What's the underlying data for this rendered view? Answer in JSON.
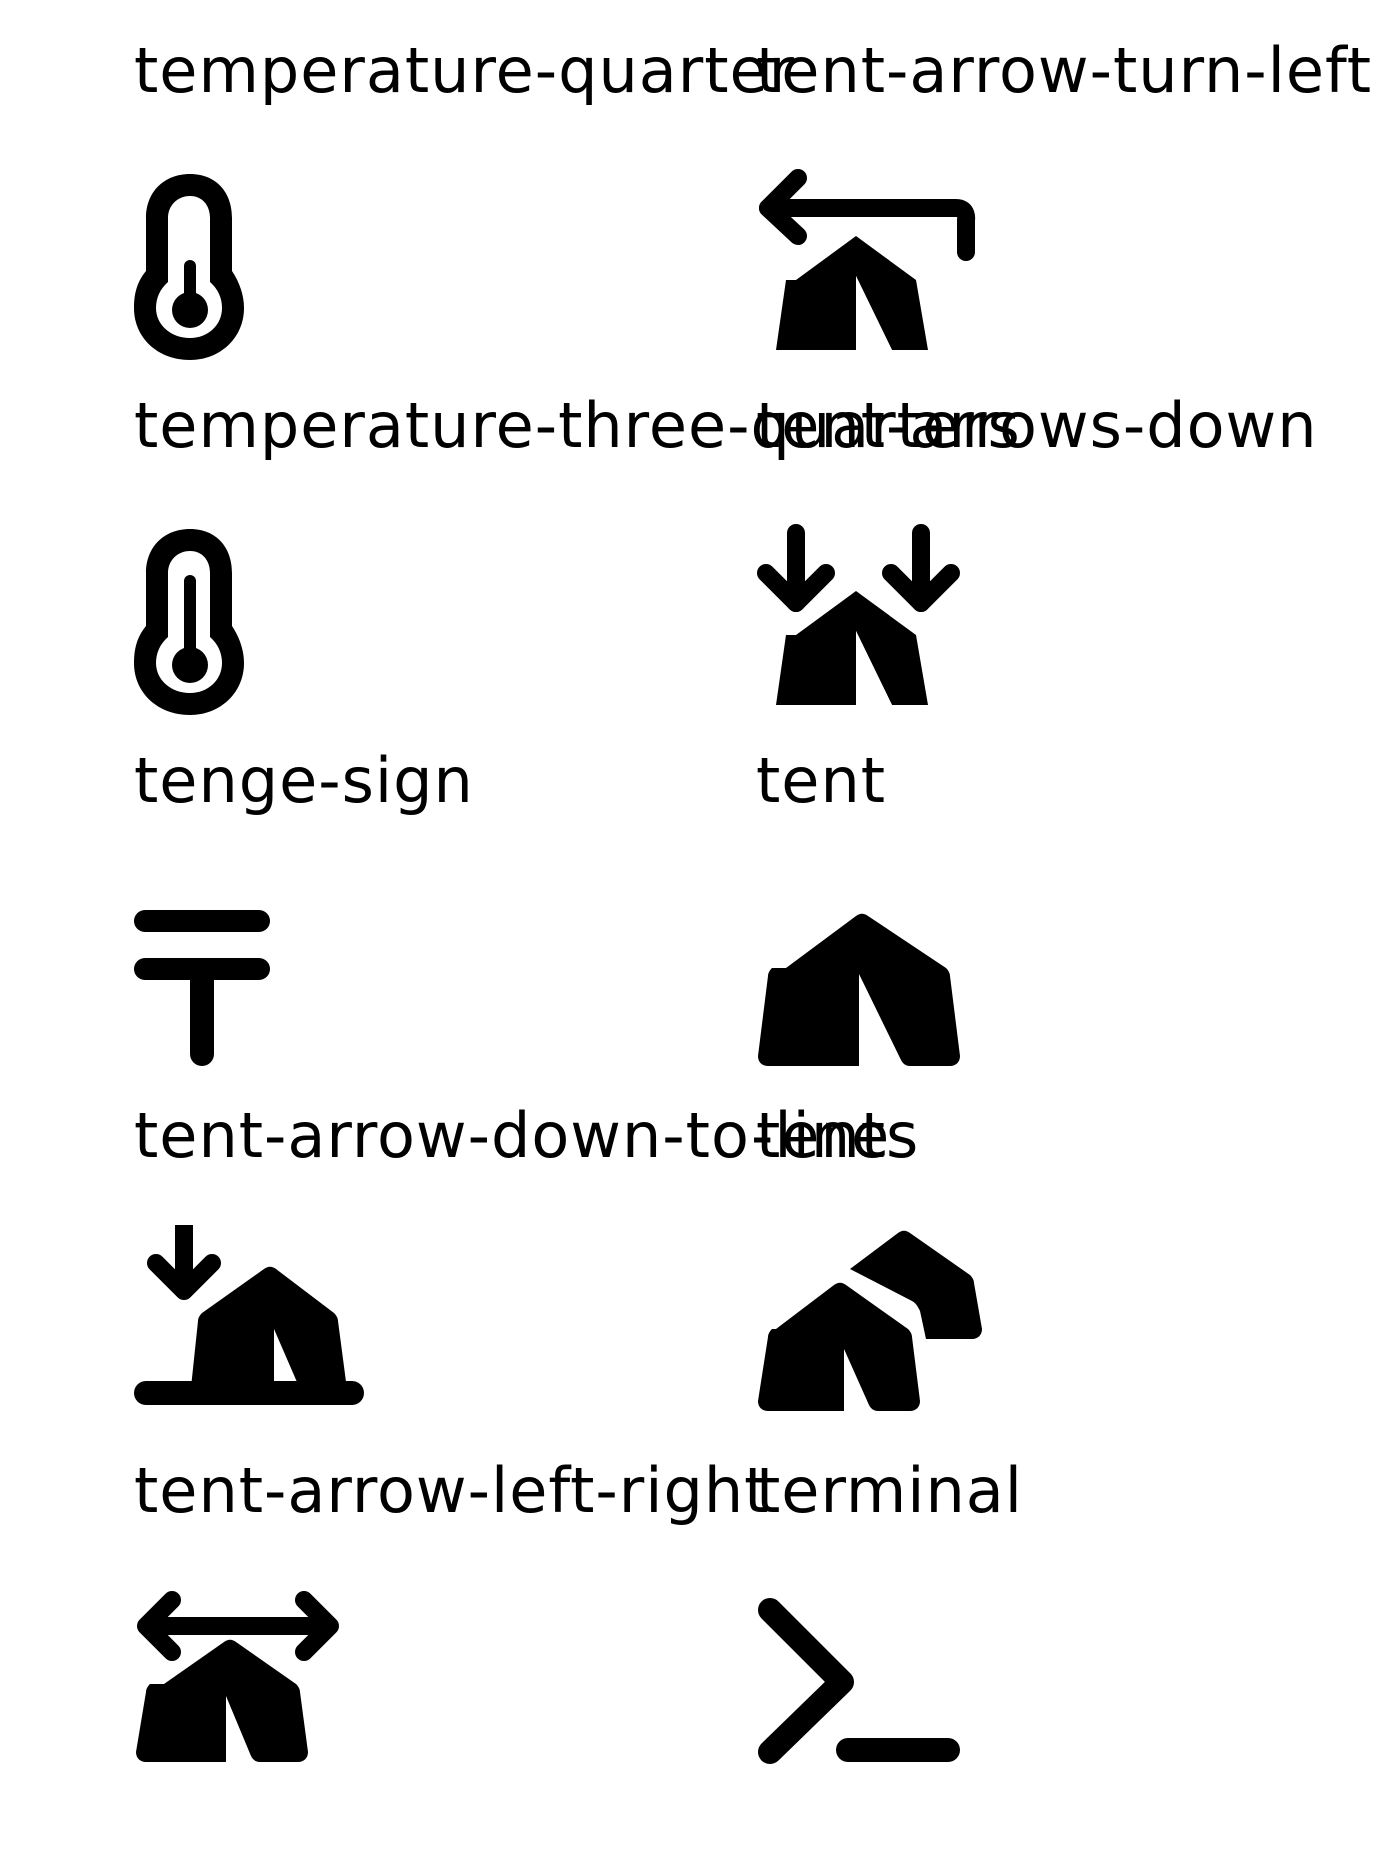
{
  "colors": {
    "background": "#ffffff",
    "foreground": "#000000"
  },
  "icons": [
    {
      "label": "temperature-quarter",
      "icon": "temperature-quarter-icon"
    },
    {
      "label": "tent-arrow-turn-left",
      "icon": "tent-arrow-turn-left-icon"
    },
    {
      "label": "temperature-three-quarters",
      "icon": "temperature-three-quarters-icon"
    },
    {
      "label": "tent-arrows-down",
      "icon": "tent-arrows-down-icon"
    },
    {
      "label": "tenge-sign",
      "icon": "tenge-sign-icon"
    },
    {
      "label": "tent",
      "icon": "tent-icon"
    },
    {
      "label": "tent-arrow-down-to-line",
      "icon": "tent-arrow-down-to-line-icon"
    },
    {
      "label": "tents",
      "icon": "tents-icon"
    },
    {
      "label": "tent-arrow-left-right",
      "icon": "tent-arrow-left-right-icon"
    },
    {
      "label": "terminal",
      "icon": "terminal-icon"
    }
  ]
}
